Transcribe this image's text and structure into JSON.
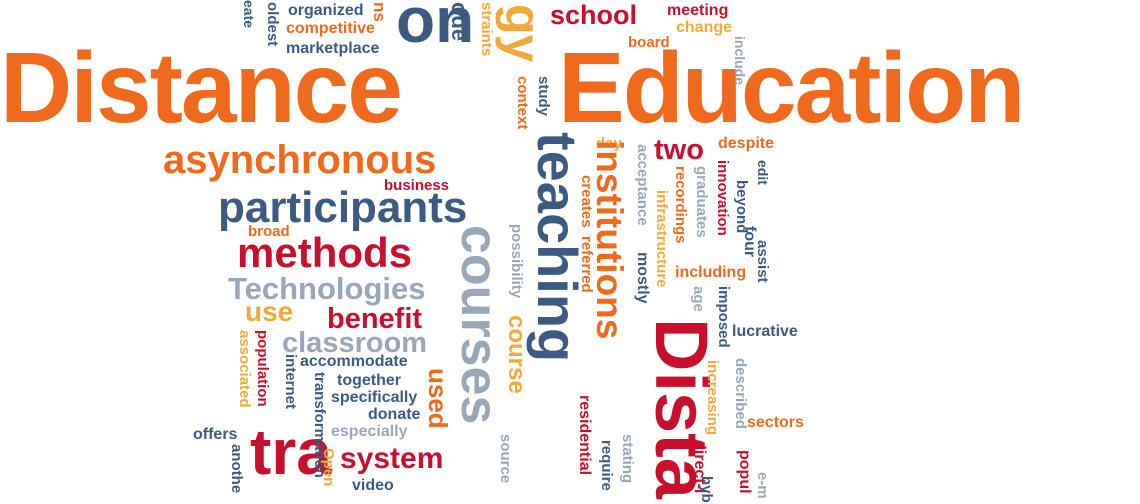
{
  "colors": {
    "orange": "#f06a1e",
    "red": "#c8102e",
    "slate": "#3d5a80",
    "gray": "#9aa7b6",
    "gold": "#f2a93b",
    "navy": "#2f3f5c"
  },
  "words": [
    {
      "text": "Distance"
    },
    {
      "text": "Education"
    },
    {
      "text": "asynchronous"
    },
    {
      "text": "participants"
    },
    {
      "text": "methods"
    },
    {
      "text": "Technologies"
    },
    {
      "text": "use"
    },
    {
      "text": "benefit"
    },
    {
      "text": "classroom"
    },
    {
      "text": "accommodate"
    },
    {
      "text": "together"
    },
    {
      "text": "specifically"
    },
    {
      "text": "donate"
    },
    {
      "text": "especially"
    },
    {
      "text": "system"
    },
    {
      "text": "video"
    },
    {
      "text": "offers"
    },
    {
      "text": "business"
    },
    {
      "text": "broad"
    },
    {
      "text": "school"
    },
    {
      "text": "meeting"
    },
    {
      "text": "change"
    },
    {
      "text": "board"
    },
    {
      "text": "organized"
    },
    {
      "text": "competitive"
    },
    {
      "text": "marketplace"
    },
    {
      "text": "two"
    },
    {
      "text": "despite"
    },
    {
      "text": "day"
    },
    {
      "text": "including"
    },
    {
      "text": "lucrative"
    },
    {
      "text": "sectors"
    },
    {
      "text": "teaching"
    },
    {
      "text": "courses"
    },
    {
      "text": "course"
    },
    {
      "text": "institutions"
    },
    {
      "text": "Dista"
    },
    {
      "text": "used"
    },
    {
      "text": "residential"
    },
    {
      "text": "source"
    },
    {
      "text": "possibility"
    },
    {
      "text": "creates"
    },
    {
      "text": "referred"
    },
    {
      "text": "mostly"
    },
    {
      "text": "acceptance"
    },
    {
      "text": "infrastructure"
    },
    {
      "text": "recordings"
    },
    {
      "text": "graduates"
    },
    {
      "text": "age"
    },
    {
      "text": "innovation"
    },
    {
      "text": "beyond"
    },
    {
      "text": "four"
    },
    {
      "text": "edit"
    },
    {
      "text": "assist"
    },
    {
      "text": "imposed"
    },
    {
      "text": "increasing"
    },
    {
      "text": "described"
    },
    {
      "text": "require"
    },
    {
      "text": "stating"
    },
    {
      "text": "direct-l"
    },
    {
      "text": "popul"
    },
    {
      "text": "e-m"
    },
    {
      "text": "hyb"
    },
    {
      "text": "study"
    },
    {
      "text": "context"
    },
    {
      "text": "straints"
    },
    {
      "text": "ode"
    },
    {
      "text": "oldest"
    },
    {
      "text": "eate"
    },
    {
      "text": "include"
    },
    {
      "text": "population"
    },
    {
      "text": "associated"
    },
    {
      "text": "internet"
    },
    {
      "text": "transformation"
    },
    {
      "text": "anothe"
    },
    {
      "text": "Open"
    },
    {
      "text": "tra"
    },
    {
      "text": "gy"
    },
    {
      "text": "on"
    },
    {
      "text": "ns"
    }
  ]
}
